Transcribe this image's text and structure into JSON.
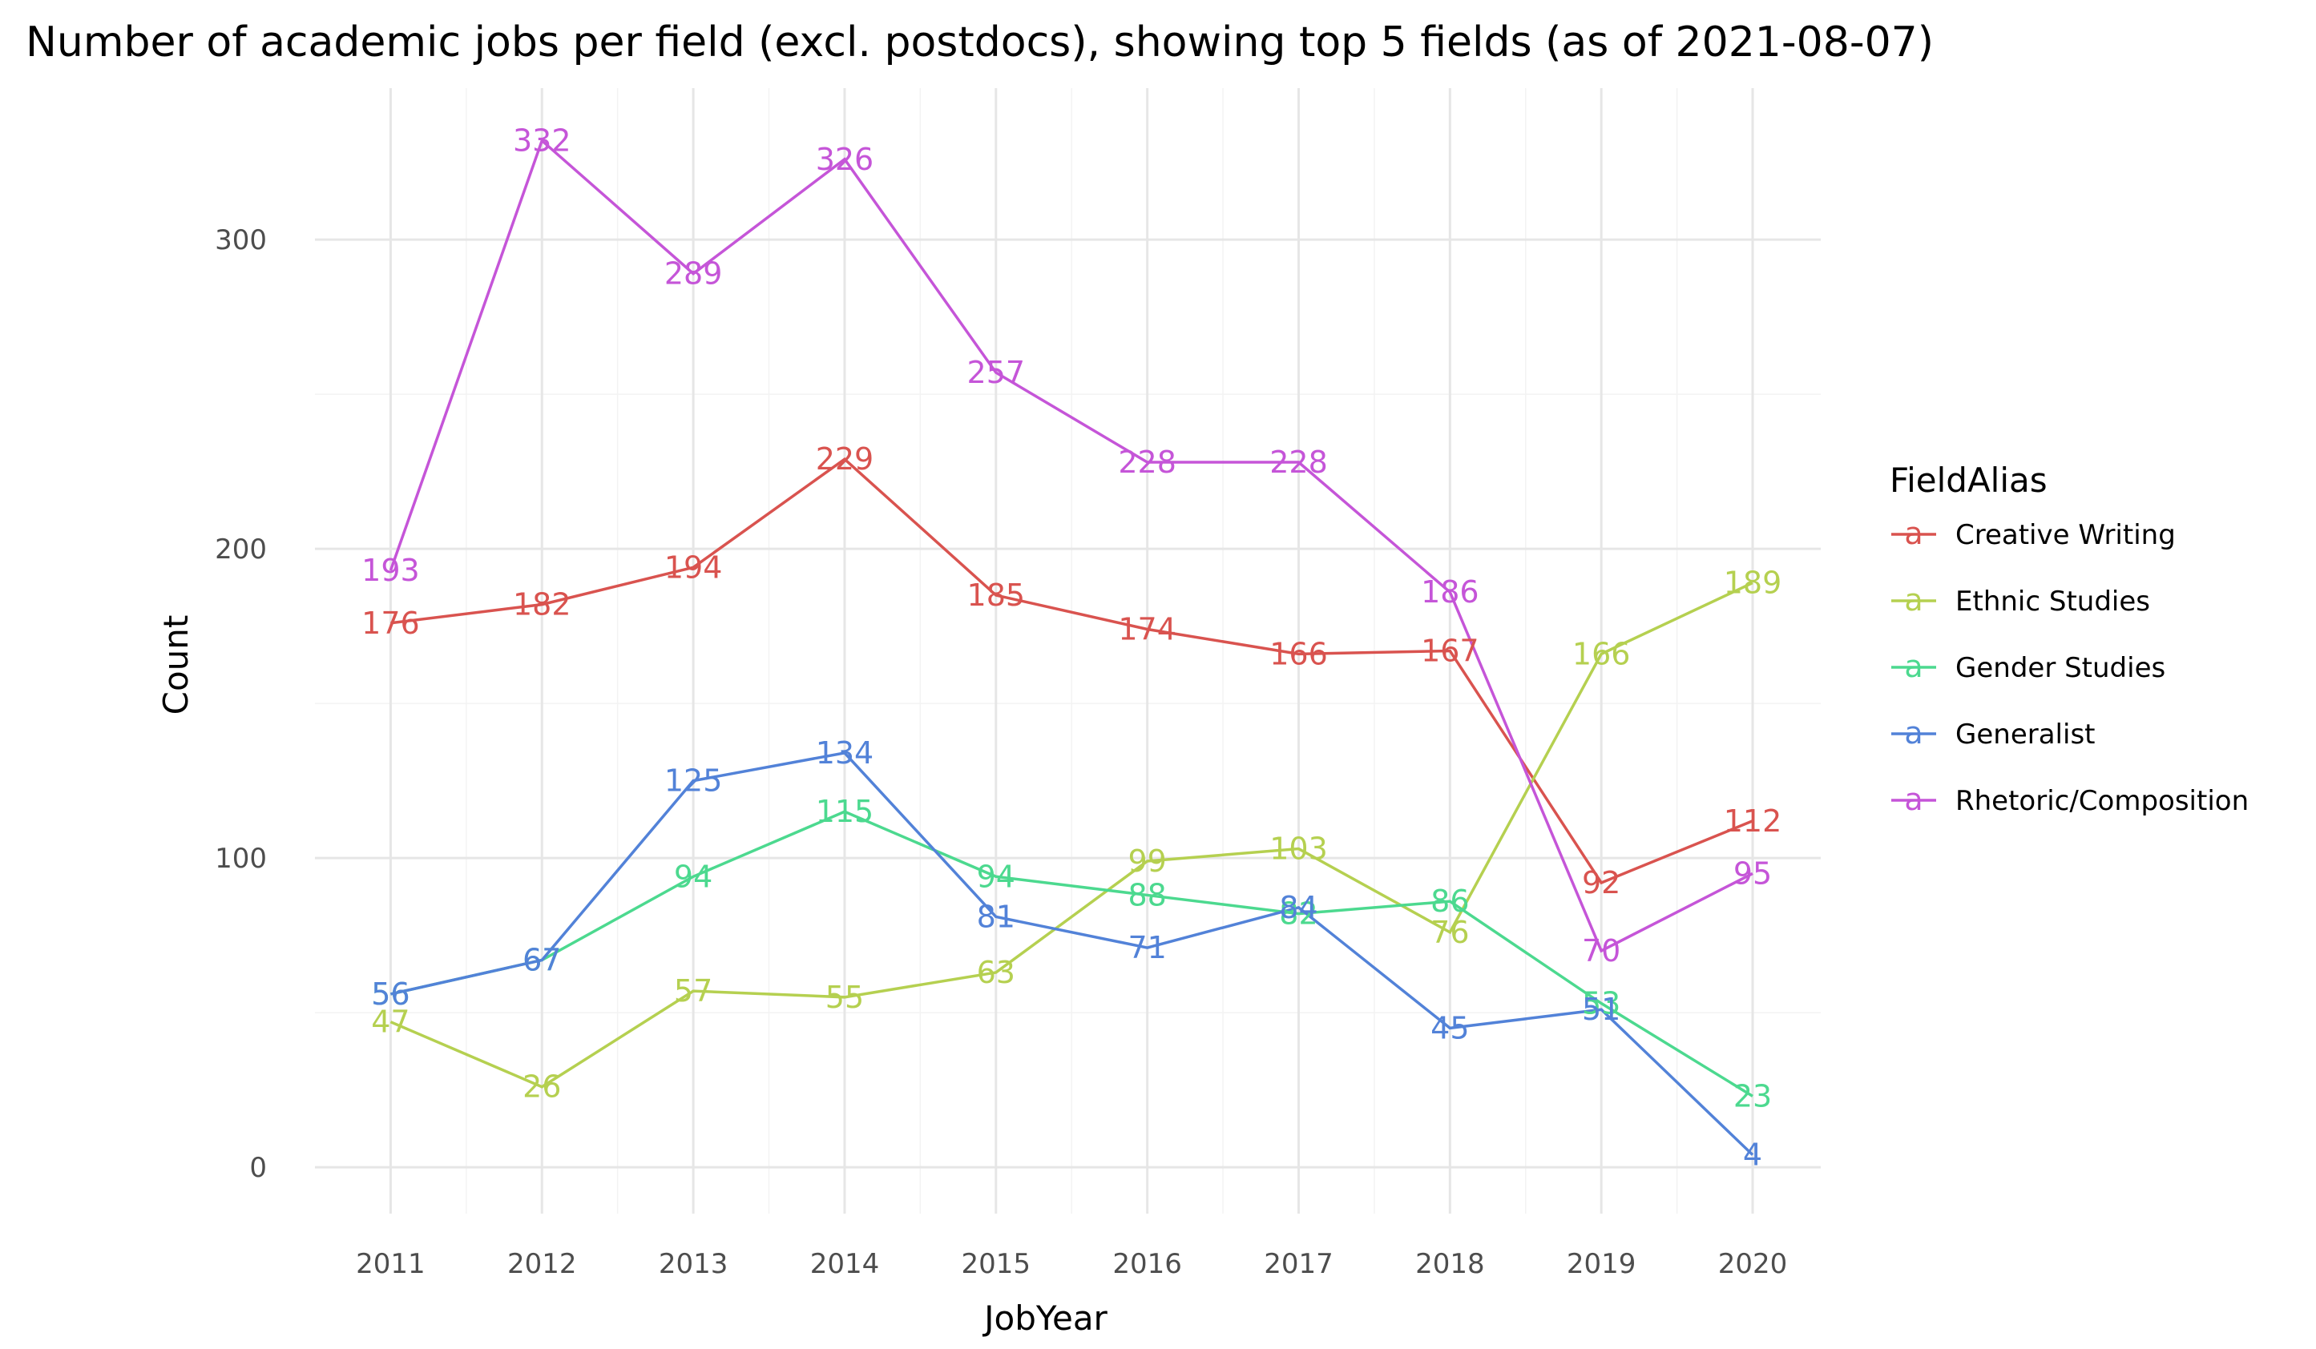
{
  "chart_data": {
    "type": "line",
    "title": "Number of academic jobs per field (excl. postdocs), showing top 5 fields (as of 2021-08-07)",
    "xlabel": "JobYear",
    "ylabel": "Count",
    "x": [
      2011,
      2012,
      2013,
      2014,
      2015,
      2016,
      2017,
      2018,
      2019,
      2020
    ],
    "x_tick_labels": [
      "2011",
      "2012",
      "2013",
      "2014",
      "2015",
      "2016",
      "2017",
      "2018",
      "2019",
      "2020"
    ],
    "y_ticks": [
      0,
      100,
      200,
      300
    ],
    "y_tick_labels": [
      "0",
      "100",
      "200",
      "300"
    ],
    "ylim": [
      -15,
      349
    ],
    "xlim": [
      2010.5,
      2020.45
    ],
    "grid": true,
    "legend": {
      "title": "FieldAlias",
      "position": "right",
      "key_glyph": "a"
    },
    "series": [
      {
        "name": "Creative Writing",
        "color": "#D9534F",
        "values": [
          176,
          182,
          194,
          229,
          185,
          174,
          166,
          167,
          92,
          112
        ]
      },
      {
        "name": "Ethnic Studies",
        "color": "#B5D050",
        "values": [
          47,
          26,
          57,
          55,
          63,
          99,
          103,
          76,
          166,
          189
        ]
      },
      {
        "name": "Gender Studies",
        "color": "#4CD98F",
        "values": [
          56,
          67,
          94,
          115,
          94,
          88,
          82,
          86,
          53,
          23
        ]
      },
      {
        "name": "Generalist",
        "color": "#5282D8",
        "values": [
          56,
          67,
          125,
          134,
          81,
          71,
          84,
          45,
          51,
          4
        ]
      },
      {
        "name": "Rhetoric/Composition",
        "color": "#C555D8",
        "values": [
          193,
          332,
          289,
          326,
          257,
          228,
          228,
          186,
          70,
          95
        ]
      }
    ]
  }
}
